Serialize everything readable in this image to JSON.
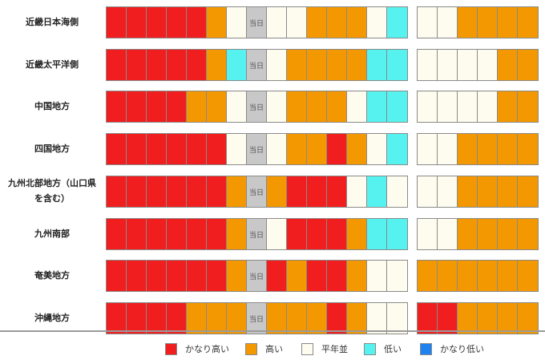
{
  "colors": {
    "very_high": "#f01e1e",
    "high": "#f39800",
    "normal": "#fdfcee",
    "low": "#55f2f0",
    "very_low": "#1e82f0",
    "today": "#c8c8c8"
  },
  "today_label": "当日",
  "rows": [
    {
      "region": "近畿日本海側",
      "days": [
        "very_high",
        "very_high",
        "very_high",
        "very_high",
        "very_high",
        "high",
        "normal",
        "today",
        "normal",
        "normal",
        "high",
        "high",
        "high",
        "normal",
        "low"
      ],
      "weeks": [
        "normal",
        "normal",
        "high",
        "high",
        "high",
        "high"
      ]
    },
    {
      "region": "近畿太平洋側",
      "days": [
        "very_high",
        "very_high",
        "very_high",
        "very_high",
        "very_high",
        "high",
        "low",
        "today",
        "normal",
        "high",
        "high",
        "high",
        "high",
        "low",
        "low"
      ],
      "weeks": [
        "normal",
        "normal",
        "normal",
        "normal",
        "high",
        "high"
      ]
    },
    {
      "region": "中国地方",
      "days": [
        "very_high",
        "very_high",
        "very_high",
        "very_high",
        "high",
        "high",
        "normal",
        "today",
        "normal",
        "high",
        "high",
        "high",
        "normal",
        "low",
        "low"
      ],
      "weeks": [
        "normal",
        "normal",
        "normal",
        "normal",
        "high",
        "high"
      ]
    },
    {
      "region": "四国地方",
      "days": [
        "very_high",
        "very_high",
        "very_high",
        "very_high",
        "very_high",
        "very_high",
        "normal",
        "today",
        "normal",
        "high",
        "high",
        "very_high",
        "high",
        "normal",
        "low"
      ],
      "weeks": [
        "normal",
        "normal",
        "high",
        "high",
        "high",
        "high"
      ]
    },
    {
      "region": "九州北部地方（山口県\nを含む）",
      "days": [
        "very_high",
        "very_high",
        "very_high",
        "very_high",
        "very_high",
        "very_high",
        "high",
        "today",
        "high",
        "very_high",
        "very_high",
        "very_high",
        "normal",
        "low",
        "normal"
      ],
      "weeks": [
        "normal",
        "normal",
        "high",
        "high",
        "high",
        "high"
      ]
    },
    {
      "region": "九州南部",
      "days": [
        "very_high",
        "very_high",
        "very_high",
        "very_high",
        "very_high",
        "very_high",
        "high",
        "today",
        "normal",
        "very_high",
        "very_high",
        "very_high",
        "high",
        "low",
        "low"
      ],
      "weeks": [
        "normal",
        "normal",
        "high",
        "high",
        "high",
        "high"
      ]
    },
    {
      "region": "奄美地方",
      "days": [
        "very_high",
        "very_high",
        "very_high",
        "very_high",
        "very_high",
        "very_high",
        "high",
        "today",
        "very_high",
        "high",
        "very_high",
        "very_high",
        "high",
        "normal",
        "normal"
      ],
      "weeks": [
        "high",
        "high",
        "high",
        "high",
        "high",
        "high"
      ]
    },
    {
      "region": "沖縄地方",
      "days": [
        "very_high",
        "very_high",
        "very_high",
        "very_high",
        "high",
        "high",
        "high",
        "today",
        "high",
        "high",
        "high",
        "very_high",
        "high",
        "normal",
        "normal"
      ],
      "weeks": [
        "very_high",
        "very_high",
        "high",
        "high",
        "high",
        "high"
      ]
    }
  ],
  "legend": [
    {
      "key": "very_high",
      "label": "かなり高い"
    },
    {
      "key": "high",
      "label": "高い"
    },
    {
      "key": "normal",
      "label": "平年並"
    },
    {
      "key": "low",
      "label": "低い"
    },
    {
      "key": "very_low",
      "label": "かなり低い"
    }
  ]
}
